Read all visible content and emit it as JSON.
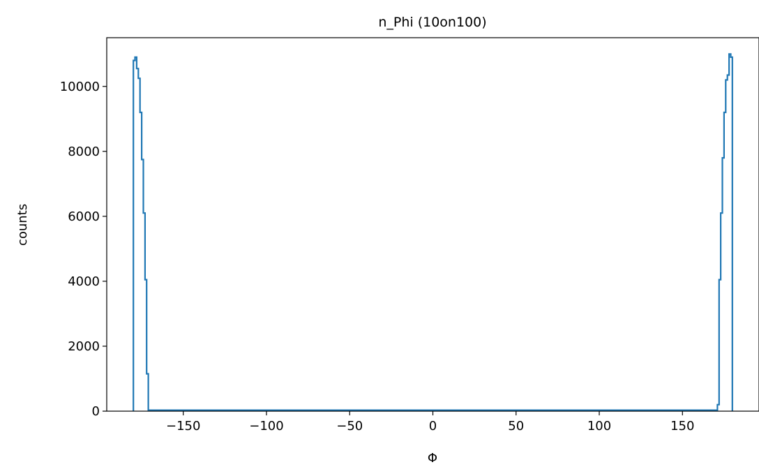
{
  "chart_data": {
    "type": "line",
    "title": "n_Phi (10on100)",
    "xlabel": "Φ",
    "ylabel": "counts",
    "xlim": [
      -196,
      196
    ],
    "ylim": [
      0,
      11500
    ],
    "xticks": [
      -150,
      -100,
      -50,
      0,
      50,
      100,
      150
    ],
    "xtick_labels": [
      "−150",
      "−100",
      "−50",
      "0",
      "50",
      "100",
      "150"
    ],
    "yticks": [
      0,
      2000,
      4000,
      6000,
      8000,
      10000
    ],
    "ytick_labels": [
      "0",
      "2000",
      "4000",
      "6000",
      "8000",
      "10000"
    ],
    "grid": false,
    "series": [
      {
        "style": "step",
        "color": "#1f77b4",
        "x": [
          -180,
          -179,
          -178,
          -177,
          -176,
          -175,
          -174,
          -173,
          -172,
          -171,
          -170,
          170,
          171,
          172,
          173,
          174,
          175,
          176,
          177,
          178,
          179,
          180
        ],
        "values": [
          10800,
          10900,
          10550,
          10250,
          9200,
          7750,
          6100,
          4050,
          1150,
          30,
          30,
          30,
          200,
          4050,
          6100,
          7800,
          9200,
          10200,
          10350,
          11000,
          10900,
          0
        ]
      }
    ]
  }
}
